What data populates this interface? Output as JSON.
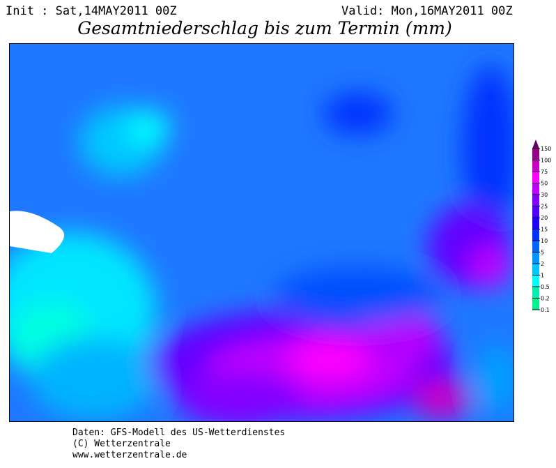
{
  "header": {
    "init": "Init : Sat,14MAY2011 00Z",
    "valid": "Valid: Mon,16MAY2011 00Z",
    "title": "Gesamtniederschlag bis zum Termin (mm)"
  },
  "legend": {
    "labels": [
      "0.1",
      "0.2",
      "0.5",
      "1",
      "2",
      "5",
      "10",
      "15",
      "20",
      "25",
      "30",
      "50",
      "75",
      "100",
      "150"
    ],
    "colors": [
      "#00f08c",
      "#00f0b4",
      "#00ffff",
      "#00c8ff",
      "#0096ff",
      "#0064ff",
      "#0032ff",
      "#1e00ff",
      "#5000ff",
      "#8200ff",
      "#c000ff",
      "#ff00ff",
      "#c800c8",
      "#96008c",
      "#640064"
    ]
  },
  "credits": [
    "Daten: GFS-Modell des US-Wetterdienstes",
    "(C) Wetterzentrale",
    "www.wetterzentrale.de"
  ]
}
